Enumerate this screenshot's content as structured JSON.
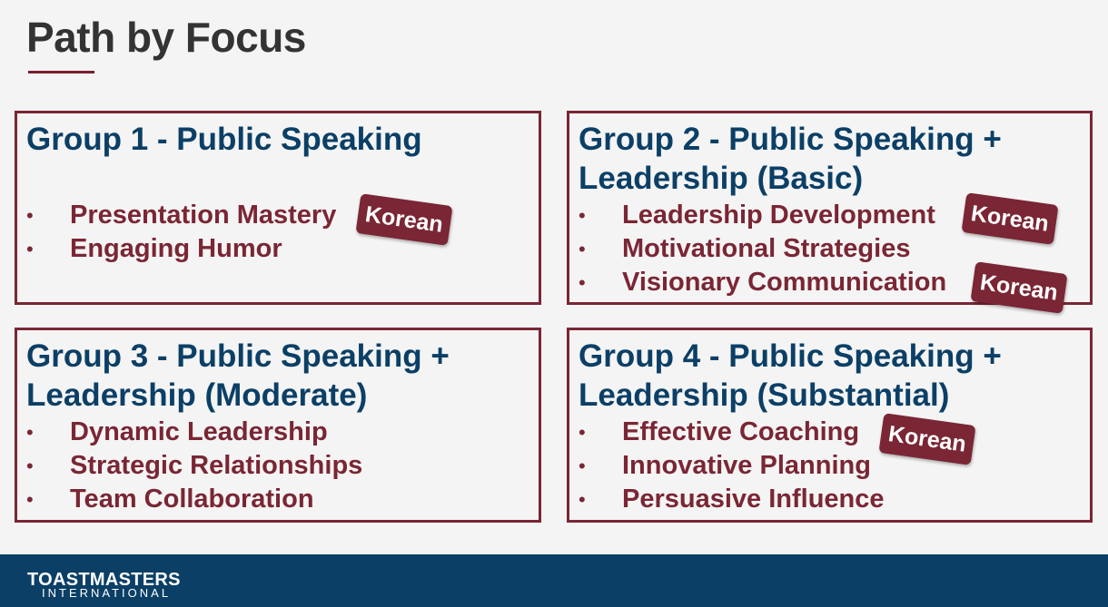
{
  "slide": {
    "title": "Path by Focus"
  },
  "groups": [
    {
      "title": "Group 1 - Public Speaking",
      "items": [
        "Presentation Mastery",
        "Engaging Humor"
      ]
    },
    {
      "title": "Group 2 - Public Speaking + Leadership (Basic)",
      "items": [
        "Leadership Development",
        "Motivational Strategies",
        "Visionary Communication"
      ]
    },
    {
      "title": "Group 3 - Public Speaking + Leadership (Moderate)",
      "items": [
        "Dynamic Leadership",
        "Strategic Relationships",
        "Team Collaboration"
      ]
    },
    {
      "title": "Group 4 - Public Speaking + Leadership (Substantial)",
      "items": [
        "Effective Coaching",
        "Innovative Planning",
        "Persuasive Influence"
      ]
    }
  ],
  "bullet": "•",
  "badge_label": "Korean",
  "footer": {
    "logo_main": "TOASTMASTERS",
    "logo_sub": "INTERNATIONAL"
  },
  "colors": {
    "title": "#333333",
    "heading": "#0b3f66",
    "accent": "#7a2634",
    "footer": "#0b3f66"
  }
}
